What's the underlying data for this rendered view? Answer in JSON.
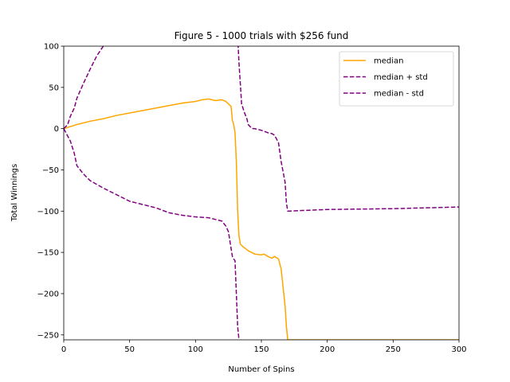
{
  "chart_data": {
    "type": "line",
    "title": "Figure 5 - 1000 trials with $256 fund",
    "xlabel": "Number of Spins",
    "ylabel": "Total Winnings",
    "xlim": [
      0,
      300
    ],
    "ylim": [
      -256,
      100
    ],
    "xticks": [
      0,
      50,
      100,
      150,
      200,
      250,
      300
    ],
    "yticks": [
      -250,
      -200,
      -150,
      -100,
      -50,
      0,
      50,
      100
    ],
    "grid": false,
    "legend_position": "top-right",
    "series": [
      {
        "name": "median",
        "color": "#ffa500",
        "dash": "solid",
        "x": [
          0,
          10,
          20,
          30,
          40,
          50,
          60,
          70,
          80,
          90,
          100,
          105,
          110,
          115,
          120,
          123,
          125,
          127,
          128,
          129,
          130,
          131,
          132,
          133,
          134,
          136,
          140,
          145,
          150,
          152,
          155,
          158,
          160,
          163,
          165,
          166,
          168,
          169,
          170,
          200,
          250,
          300
        ],
        "y": [
          0,
          5,
          9,
          12,
          16,
          19,
          22,
          25,
          28,
          31,
          33,
          35,
          36,
          34,
          35,
          33,
          30,
          27,
          10,
          5,
          -5,
          -40,
          -100,
          -130,
          -140,
          -143,
          -148,
          -152,
          -153,
          -152,
          -155,
          -157,
          -155,
          -158,
          -170,
          -185,
          -215,
          -240,
          -256,
          -256,
          -256,
          -256
        ]
      },
      {
        "name": "median + std",
        "color": "#800080",
        "dash": "dashed",
        "x": [
          0,
          3,
          5,
          8,
          10,
          15,
          20,
          25,
          30,
          35,
          132,
          133,
          135,
          137,
          139,
          140,
          143,
          145,
          150,
          155,
          158,
          160,
          163,
          165,
          168,
          169,
          170,
          200,
          250,
          300
        ],
        "y": [
          0,
          5,
          15,
          25,
          37,
          55,
          72,
          88,
          100,
          112,
          112,
          80,
          30,
          20,
          12,
          5,
          0,
          0,
          -2,
          -5,
          -6,
          -8,
          -17,
          -40,
          -65,
          -90,
          -100,
          -98,
          -97,
          -95
        ]
      },
      {
        "name": "median - std",
        "color": "#800080",
        "dash": "dashed",
        "x": [
          0,
          5,
          8,
          10,
          15,
          20,
          30,
          40,
          50,
          60,
          70,
          80,
          90,
          100,
          110,
          115,
          120,
          123,
          125,
          127,
          128,
          129,
          130,
          131,
          132,
          133
        ],
        "y": [
          0,
          -15,
          -30,
          -45,
          -55,
          -63,
          -72,
          -80,
          -88,
          -92,
          -96,
          -102,
          -105,
          -107,
          -108,
          -110,
          -112,
          -118,
          -125,
          -145,
          -155,
          -158,
          -160,
          -200,
          -240,
          -256
        ]
      }
    ]
  }
}
